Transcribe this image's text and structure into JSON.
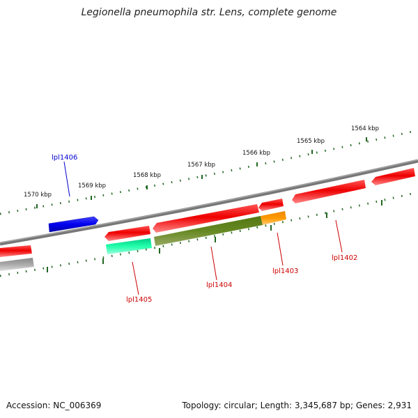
{
  "title": "Legionella pneumophila str. Lens, complete genome",
  "footer": {
    "accession": "Accession: NC_006369",
    "topology": "Topology: circular; Length: 3,345,687 bp; Genes: 2,931"
  },
  "kbp_labels": [
    "1570 kbp",
    "1569 kbp",
    "1568 kbp",
    "1567 kbp",
    "1566 kbp",
    "1565 kbp",
    "1564 kbp"
  ],
  "gene_labels": [
    {
      "text": "lpl1406",
      "color": "#0000cc"
    },
    {
      "text": "lpl1405",
      "color": "#cc0000"
    },
    {
      "text": "lpl1404",
      "color": "#cc0000"
    },
    {
      "text": "lpl1403",
      "color": "#cc0000"
    },
    {
      "text": "lpl1402",
      "color": "#cc0000"
    }
  ],
  "colors": {
    "forward_gene": "#0000ee",
    "reverse_gene": "#ee0000",
    "rna_gene": "#00ee99",
    "cds_feature": "#668822",
    "misc_feature": "#ff9900",
    "other_feature": "#aaaaaa",
    "backbone": "#888888",
    "ticks": "#226622"
  }
}
